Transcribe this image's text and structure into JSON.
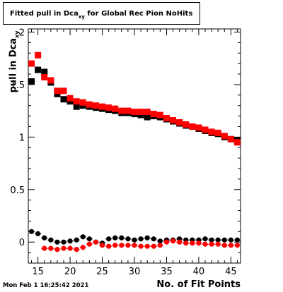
{
  "chart_data": {
    "type": "scatter",
    "title": "Fitted pull in Dca",
    "title_subscript": "xy",
    "title_suffix": " for Global Rec Pion NoHits",
    "xlabel": "No. of Fit Points",
    "ylabel": "pull in Dca",
    "ylabel_subscript": "xy",
    "timestamp": "Mon Feb  1 16:25:42 2021",
    "xlim": [
      13.5,
      46.5
    ],
    "ylim": [
      -0.2,
      2.03
    ],
    "x_ticks": [
      15,
      20,
      25,
      30,
      35,
      40,
      45
    ],
    "y_ticks": [
      0,
      0.5,
      1,
      1.5,
      2
    ],
    "y_tick_labels": [
      "0",
      "0.5",
      "1",
      "1.5",
      "2"
    ],
    "grid": false,
    "series": [
      {
        "color": "#000000",
        "marker": "square",
        "x": [
          14,
          15,
          16,
          17,
          18,
          19,
          20,
          21,
          22,
          23,
          24,
          25,
          26,
          27,
          28,
          29,
          30,
          31,
          32,
          33,
          34,
          35,
          36,
          37,
          38,
          39,
          40,
          41,
          42,
          43,
          44,
          45,
          46
        ],
        "values": [
          1.53,
          1.64,
          1.62,
          1.52,
          1.41,
          1.36,
          1.34,
          1.29,
          1.3,
          1.29,
          1.28,
          1.27,
          1.26,
          1.25,
          1.23,
          1.23,
          1.22,
          1.21,
          1.19,
          1.2,
          1.19,
          1.17,
          1.15,
          1.13,
          1.11,
          1.1,
          1.08,
          1.06,
          1.04,
          1.03,
          1.0,
          0.98,
          0.97
        ]
      },
      {
        "color": "#ff0000",
        "marker": "square",
        "x": [
          14,
          15,
          16,
          17,
          18,
          19,
          20,
          21,
          22,
          23,
          24,
          25,
          26,
          27,
          28,
          29,
          30,
          31,
          32,
          33,
          34,
          35,
          36,
          37,
          38,
          39,
          40,
          41,
          42,
          43,
          44,
          45,
          46
        ],
        "values": [
          1.7,
          1.78,
          1.57,
          1.54,
          1.44,
          1.44,
          1.37,
          1.34,
          1.33,
          1.31,
          1.3,
          1.29,
          1.28,
          1.27,
          1.25,
          1.25,
          1.24,
          1.24,
          1.24,
          1.22,
          1.21,
          1.18,
          1.16,
          1.14,
          1.12,
          1.1,
          1.09,
          1.07,
          1.05,
          1.04,
          1.01,
          0.98,
          0.95
        ]
      },
      {
        "color": "#000000",
        "marker": "circle",
        "x": [
          14,
          15,
          16,
          17,
          18,
          19,
          20,
          21,
          22,
          23,
          24,
          25,
          26,
          27,
          28,
          29,
          30,
          31,
          32,
          33,
          34,
          35,
          36,
          37,
          38,
          39,
          40,
          41,
          42,
          43,
          44,
          45,
          46
        ],
        "values": [
          0.1,
          0.08,
          0.04,
          0.02,
          0.0,
          0.0,
          0.01,
          0.02,
          0.05,
          0.03,
          0.0,
          -0.01,
          0.03,
          0.04,
          0.04,
          0.03,
          0.02,
          0.03,
          0.04,
          0.03,
          0.01,
          0.02,
          0.02,
          0.03,
          0.02,
          0.02,
          0.02,
          0.03,
          0.02,
          0.02,
          0.02,
          0.02,
          0.02
        ]
      },
      {
        "color": "#ff0000",
        "marker": "circle",
        "x": [
          16,
          17,
          18,
          19,
          20,
          21,
          22,
          23,
          24,
          25,
          26,
          27,
          28,
          29,
          30,
          31,
          32,
          33,
          34,
          35,
          36,
          37,
          38,
          39,
          40,
          41,
          42,
          43,
          44,
          45,
          46
        ],
        "values": [
          -0.06,
          -0.06,
          -0.07,
          -0.06,
          -0.06,
          -0.07,
          -0.05,
          -0.02,
          0.0,
          -0.03,
          -0.04,
          -0.03,
          -0.03,
          -0.03,
          -0.03,
          -0.04,
          -0.04,
          -0.04,
          -0.03,
          0.0,
          0.01,
          0.0,
          -0.01,
          -0.01,
          -0.01,
          -0.02,
          -0.02,
          -0.02,
          -0.03,
          -0.03,
          -0.03
        ]
      }
    ]
  }
}
